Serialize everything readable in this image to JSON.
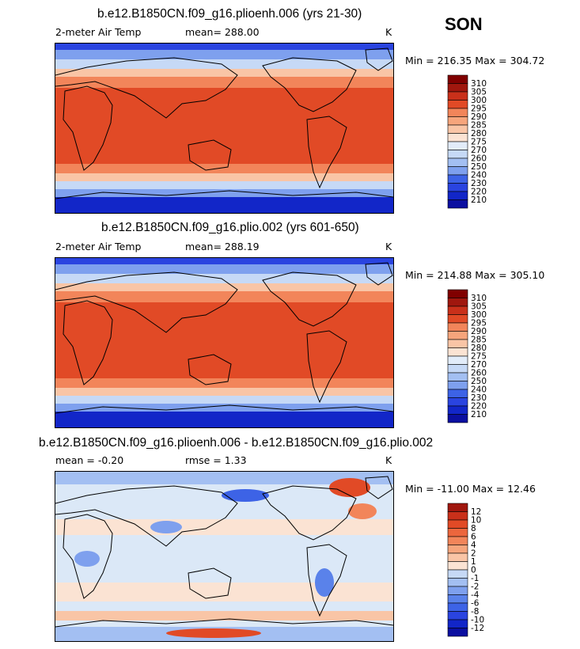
{
  "season": "SON",
  "colors": {
    "abs_scale": [
      "#0b0fa0",
      "#1226c8",
      "#2a44e0",
      "#3d63e6",
      "#5a82ea",
      "#7ea0ee",
      "#a3bff2",
      "#c6d9f6",
      "#e2ecf9",
      "#fbe3d3",
      "#f9c5a6",
      "#f6a57c",
      "#f2855a",
      "#ec663d",
      "#e14a26",
      "#c9301a",
      "#a0170e",
      "#800000"
    ],
    "diff_scale": [
      "#0b0fa0",
      "#1226c8",
      "#2a44e0",
      "#3d63e6",
      "#5a82ea",
      "#7ea0ee",
      "#a3bff2",
      "#c6d9f6",
      "#dbe8f7",
      "#fbe3d3",
      "#f9c5a6",
      "#f6a57c",
      "#f2855a",
      "#ec663d",
      "#e14a26",
      "#c9301a",
      "#a0170e"
    ]
  },
  "chart_data": [
    {
      "type": "heatmap",
      "title": "b.e12.B1850CN.f09_g16.plioenh.006 (yrs 21-30)",
      "variable": "2-meter Air Temp",
      "mean_label": "mean= 288.00",
      "units": "K",
      "minmax_label": "Min = 216.35 Max = 304.72",
      "min": 216.35,
      "max": 304.72,
      "colorbar_levels": [
        "310",
        "305",
        "300",
        "295",
        "290",
        "285",
        "280",
        "275",
        "270",
        "260",
        "250",
        "240",
        "230",
        "220",
        "210"
      ]
    },
    {
      "type": "heatmap",
      "title": "b.e12.B1850CN.f09_g16.plio.002 (yrs 601-650)",
      "variable": "2-meter Air Temp",
      "mean_label": "mean= 288.19",
      "units": "K",
      "minmax_label": "Min = 214.88 Max = 305.10",
      "min": 214.88,
      "max": 305.1,
      "colorbar_levels": [
        "310",
        "305",
        "300",
        "295",
        "290",
        "285",
        "280",
        "275",
        "270",
        "260",
        "250",
        "240",
        "230",
        "220",
        "210"
      ]
    },
    {
      "type": "heatmap",
      "title": "b.e12.B1850CN.f09_g16.plioenh.006 - b.e12.B1850CN.f09_g16.plio.002",
      "mean_label": "mean =   -0.20",
      "rmse_label": "rmse =    1.33",
      "units": "K",
      "minmax_label": "Min = -11.00 Max =  12.46",
      "min": -11.0,
      "max": 12.46,
      "colorbar_levels": [
        "12",
        "10",
        "8",
        "6",
        "4",
        "2",
        "1",
        "0",
        "-1",
        "-2",
        "-4",
        "-6",
        "-8",
        "-10",
        "-12"
      ]
    }
  ]
}
